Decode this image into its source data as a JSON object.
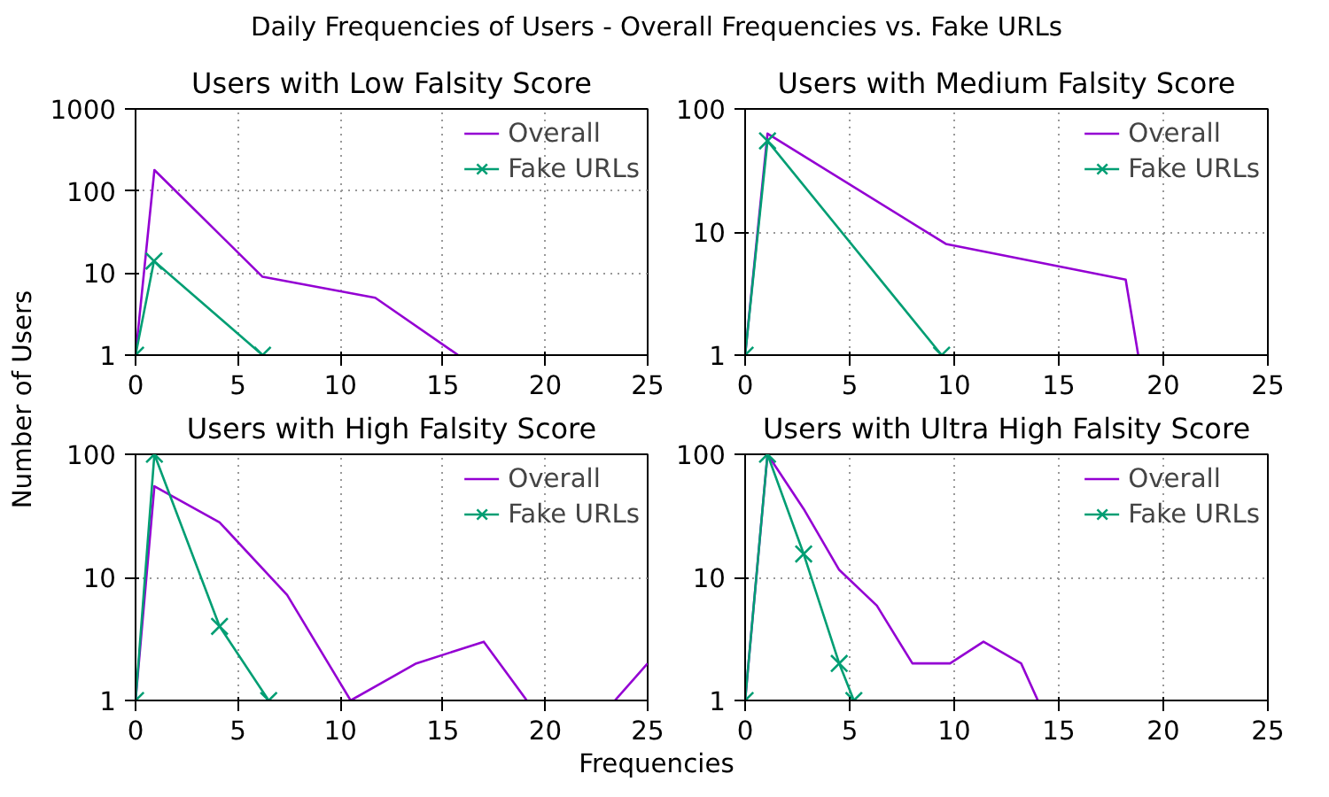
{
  "chart_data": [
    {
      "type": "line",
      "title": "Users with Low Falsity Score",
      "ylabel": "Number of Users",
      "annotations": [
        "Daily Frequencies of Users - Overall Frequencies vs. Fake URLs"
      ],
      "log": "y",
      "grid": true,
      "legend": "top right",
      "xlim": [
        0,
        25
      ],
      "ylim": [
        1,
        1000
      ],
      "xticks": [
        0,
        5,
        10,
        15,
        20,
        25
      ],
      "yticks": [
        1,
        10,
        100,
        1000
      ],
      "series": [
        {
          "name": "Overall",
          "color": "#9400d3",
          "marker": "none",
          "x": [
            0,
            0.92,
            6.2,
            11.7,
            15.75
          ],
          "values": [
            1,
            180,
            9,
            5,
            1
          ]
        },
        {
          "name": "Fake URLs",
          "color": "#009e73",
          "marker": "cross",
          "x": [
            0,
            0.9,
            6.2
          ],
          "values": [
            1,
            14,
            1
          ]
        }
      ]
    },
    {
      "type": "line",
      "title": "Users with Medium Falsity Score",
      "log": "y",
      "grid": true,
      "legend": "top right",
      "xlim": [
        0,
        25
      ],
      "ylim": [
        1,
        100
      ],
      "xticks": [
        0,
        5,
        10,
        15,
        20,
        25
      ],
      "yticks": [
        1,
        10,
        100
      ],
      "series": [
        {
          "name": "Overall",
          "color": "#9400d3",
          "marker": "none",
          "x": [
            0,
            1.07,
            9.6,
            18.2,
            18.8
          ],
          "values": [
            1,
            63,
            8,
            4.1,
            1
          ]
        },
        {
          "name": "Fake URLs",
          "color": "#009e73",
          "marker": "cross",
          "x": [
            0,
            1.07,
            9.4
          ],
          "values": [
            1,
            55,
            1
          ]
        }
      ]
    },
    {
      "type": "line",
      "title": "Users with High Falsity Score",
      "xlabel": "Frequencies",
      "log": "y",
      "grid": true,
      "legend": "top right",
      "xlim": [
        0,
        25
      ],
      "ylim": [
        1,
        100
      ],
      "xticks": [
        0,
        5,
        10,
        15,
        20,
        25
      ],
      "yticks": [
        1,
        10,
        100
      ],
      "series": [
        {
          "name": "Overall",
          "color": "#9400d3",
          "marker": "none",
          "x": [
            0,
            0.92,
            4.1,
            7.4,
            10.5,
            13.7,
            17.0,
            19.1,
            21,
            23.4,
            25
          ],
          "values": [
            1,
            55,
            28,
            7.2,
            1,
            2,
            3,
            1,
            null,
            1,
            2
          ]
        },
        {
          "name": "Fake URLs",
          "color": "#009e73",
          "marker": "cross",
          "x": [
            0,
            0.92,
            4.1,
            6.5
          ],
          "values": [
            1,
            100,
            4,
            1
          ]
        }
      ]
    },
    {
      "type": "line",
      "title": "Users with Ultra High Falsity Score",
      "log": "y",
      "grid": true,
      "legend": "top right",
      "xlim": [
        0,
        25
      ],
      "ylim": [
        1,
        100
      ],
      "xticks": [
        0,
        5,
        10,
        15,
        20,
        25
      ],
      "yticks": [
        1,
        10,
        100
      ],
      "series": [
        {
          "name": "Overall",
          "color": "#9400d3",
          "marker": "none",
          "x": [
            0,
            1.07,
            2.8,
            4.5,
            6.3,
            8.0,
            9.8,
            11.4,
            13.2,
            14.0
          ],
          "values": [
            1,
            100,
            36,
            11.5,
            5.9,
            2,
            2,
            3,
            2,
            1
          ]
        },
        {
          "name": "Fake URLs",
          "color": "#009e73",
          "marker": "cross",
          "x": [
            0,
            1.07,
            2.8,
            4.5,
            5.2
          ],
          "values": [
            1,
            100,
            15.5,
            2,
            1
          ]
        }
      ]
    }
  ]
}
